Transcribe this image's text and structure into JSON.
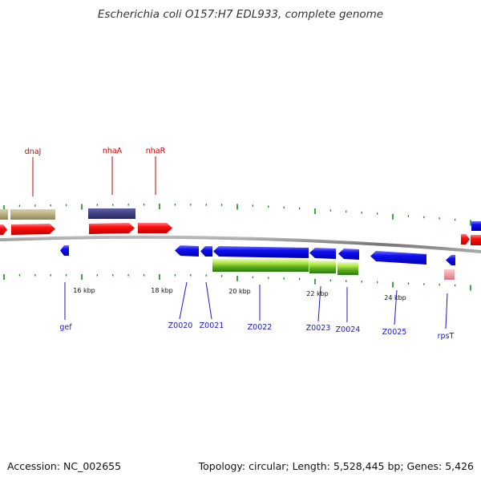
{
  "title": "Escherichia coli O157:H7 EDL933, complete genome",
  "footer": {
    "accession": "Accession: NC_002655",
    "summary": "Topology: circular; Length: 5,528,445 bp; Genes: 5,426"
  },
  "scale_labels": [
    "16 kbp",
    "18 kbp",
    "20 kbp",
    "22 kbp",
    "24 kbp"
  ],
  "genes_forward": [
    {
      "name": "dnaJ",
      "color": "#cc0000"
    },
    {
      "name": "nhaA",
      "color": "#cc0000"
    },
    {
      "name": "nhaR",
      "color": "#cc0000"
    }
  ],
  "genes_reverse": [
    {
      "name": "gef",
      "color": "#1a1acc"
    },
    {
      "name": "Z0020",
      "color": "#1a1acc"
    },
    {
      "name": "Z0021",
      "color": "#1a1acc"
    },
    {
      "name": "Z0022",
      "color": "#1a1acc"
    },
    {
      "name": "Z0023",
      "color": "#1a1acc"
    },
    {
      "name": "Z0024",
      "color": "#1a1acc"
    },
    {
      "name": "Z0025",
      "color": "#1a1acc"
    },
    {
      "name": "rpsT",
      "color": "#1a1acc"
    }
  ],
  "colors": {
    "forward_cds": "#ee1111",
    "reverse_cds": "#1111ee",
    "cog_olive": "#b8b080",
    "cog_navy": "#404080",
    "cog_green": "#88cc22",
    "cog_pink": "#f0a0a8",
    "backbone": "#888888",
    "tick": "#1a8a1a"
  }
}
